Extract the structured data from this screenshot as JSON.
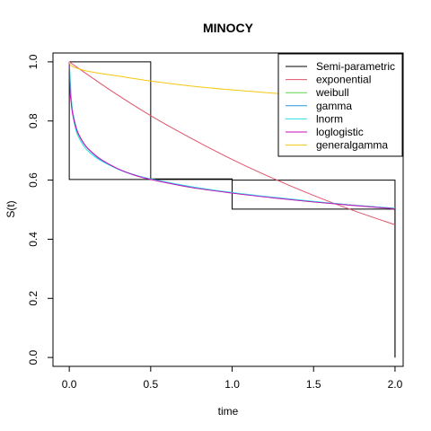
{
  "chart_data": {
    "type": "line",
    "title": "MINOCY",
    "xlabel": "time",
    "ylabel": "S(t)",
    "xlim": [
      -0.1,
      2.05
    ],
    "ylim": [
      -0.03,
      1.03
    ],
    "xticks": [
      "0.0",
      "0.5",
      "1.0",
      "1.5",
      "2.0"
    ],
    "xtick_values": [
      0,
      0.5,
      1,
      1.5,
      2
    ],
    "yticks": [
      "0.0",
      "0.2",
      "0.4",
      "0.6",
      "0.8",
      "1.0"
    ],
    "ytick_values": [
      0,
      0.2,
      0.4,
      0.6,
      0.8,
      1
    ],
    "grid": false,
    "legend_position": "top-right",
    "step_series": {
      "name": "Semi-parametric",
      "color": "#000000",
      "lower": {
        "x": [
          0,
          0,
          0.5,
          0.5,
          1,
          1,
          2,
          2
        ],
        "y": [
          1,
          0.602,
          0.602,
          0.604,
          0.604,
          0.502,
          0.502,
          0
        ]
      },
      "upper": {
        "x": [
          0,
          0,
          0.5,
          0.5,
          1,
          1,
          2,
          2
        ],
        "y": [
          1,
          1,
          1,
          0.602,
          0.602,
          0.6,
          0.6,
          0
        ]
      }
    },
    "series": [
      {
        "name": "exponential",
        "color": "#DF536B",
        "x": [
          0,
          0.25,
          0.5,
          0.75,
          1.0,
          1.25,
          1.5,
          1.75,
          2.0
        ],
        "y": [
          1.0,
          0.905,
          0.818,
          0.741,
          0.67,
          0.606,
          0.548,
          0.496,
          0.449
        ]
      },
      {
        "name": "weibull",
        "color": "#61D04F",
        "x": [
          0,
          0.005,
          0.01,
          0.02,
          0.04,
          0.06,
          0.1,
          0.15,
          0.2,
          0.3,
          0.4,
          0.5,
          0.75,
          1.0,
          1.25,
          1.5,
          1.75,
          2.0
        ],
        "y": [
          1.0,
          0.92,
          0.88,
          0.83,
          0.78,
          0.75,
          0.715,
          0.688,
          0.667,
          0.638,
          0.617,
          0.603,
          0.575,
          0.557,
          0.541,
          0.526,
          0.514,
          0.503
        ]
      },
      {
        "name": "gamma",
        "color": "#2297E6",
        "x": [
          0,
          0.005,
          0.01,
          0.02,
          0.04,
          0.06,
          0.1,
          0.15,
          0.2,
          0.3,
          0.4,
          0.5,
          0.75,
          1.0,
          1.25,
          1.5,
          1.75,
          2.0
        ],
        "y": [
          1.0,
          0.93,
          0.89,
          0.835,
          0.783,
          0.752,
          0.716,
          0.688,
          0.667,
          0.637,
          0.617,
          0.603,
          0.576,
          0.557,
          0.541,
          0.527,
          0.515,
          0.504
        ]
      },
      {
        "name": "lnorm",
        "color": "#28E2E5",
        "x": [
          0,
          0.005,
          0.01,
          0.02,
          0.04,
          0.06,
          0.1,
          0.15,
          0.2,
          0.3,
          0.4,
          0.5,
          0.75,
          1.0,
          1.25,
          1.5,
          1.75,
          2.0
        ],
        "y": [
          1.0,
          0.95,
          0.9,
          0.83,
          0.77,
          0.742,
          0.707,
          0.682,
          0.664,
          0.637,
          0.618,
          0.604,
          0.578,
          0.558,
          0.542,
          0.528,
          0.515,
          0.505
        ]
      },
      {
        "name": "loglogistic",
        "color": "#CD0BBC",
        "x": [
          0,
          0.005,
          0.01,
          0.02,
          0.04,
          0.06,
          0.1,
          0.15,
          0.2,
          0.3,
          0.4,
          0.5,
          0.75,
          1.0,
          1.25,
          1.5,
          1.75,
          2.0
        ],
        "y": [
          1.0,
          0.9,
          0.87,
          0.825,
          0.78,
          0.752,
          0.716,
          0.689,
          0.668,
          0.638,
          0.617,
          0.602,
          0.575,
          0.556,
          0.54,
          0.526,
          0.514,
          0.503
        ]
      },
      {
        "name": "generalgamma",
        "color": "#F5C710",
        "x": [
          0,
          0.01,
          0.05,
          0.1,
          0.2,
          0.3,
          0.5,
          0.75,
          1.0,
          1.25,
          1.5
        ],
        "y": [
          1.0,
          0.988,
          0.978,
          0.97,
          0.96,
          0.952,
          0.935,
          0.918,
          0.905,
          0.894,
          0.885
        ]
      }
    ]
  }
}
